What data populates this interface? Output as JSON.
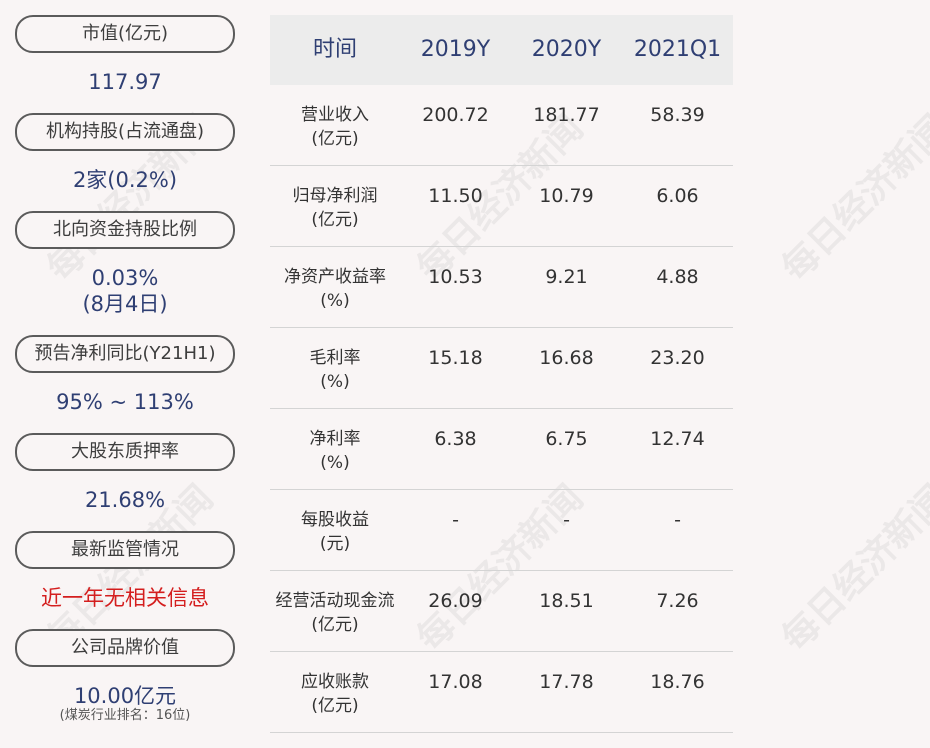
{
  "left": {
    "items": [
      {
        "label": "市值(亿元)",
        "value": "117.97"
      },
      {
        "label": "机构持股(占流通盘)",
        "value": "2家(0.2%)"
      },
      {
        "label": "北向资金持股比例",
        "value": "0.03%",
        "value2": "(8月4日)"
      },
      {
        "label": "预告净利同比(Y21H1)",
        "value": "95% ~ 113%"
      },
      {
        "label": "大股东质押率",
        "value": "21.68%"
      },
      {
        "label": "最新监管情况",
        "value": "近一年无相关信息"
      },
      {
        "label": "公司品牌价值",
        "value": "10.00亿元",
        "sub": "(煤炭行业排名：16位)"
      }
    ]
  },
  "table": {
    "headers": [
      "时间",
      "2019Y",
      "2020Y",
      "2021Q1"
    ],
    "rows": [
      {
        "label": "营业收入",
        "unit": "(亿元)",
        "values": [
          "200.72",
          "181.77",
          "58.39"
        ]
      },
      {
        "label": "归母净利润",
        "unit": "(亿元)",
        "values": [
          "11.50",
          "10.79",
          "6.06"
        ]
      },
      {
        "label": "净资产收益率",
        "unit": "(%)",
        "values": [
          "10.53",
          "9.21",
          "4.88"
        ]
      },
      {
        "label": "毛利率",
        "unit": "(%)",
        "values": [
          "15.18",
          "16.68",
          "23.20"
        ]
      },
      {
        "label": "净利率",
        "unit": "(%)",
        "values": [
          "6.38",
          "6.75",
          "12.74"
        ]
      },
      {
        "label": "每股收益",
        "unit": "(元)",
        "values": [
          "-",
          "-",
          "-"
        ]
      },
      {
        "label": "经营活动现金流",
        "unit": "(亿元)",
        "values": [
          "26.09",
          "18.51",
          "7.26"
        ]
      },
      {
        "label": "应收账款",
        "unit": "(亿元)",
        "values": [
          "17.08",
          "17.78",
          "18.76"
        ]
      }
    ]
  },
  "watermark": "每日经济新闻",
  "colors": {
    "background": "#f9f5f5",
    "value_blue": "#2f3f73",
    "alert_red": "#d41e1e",
    "header_bg": "#ececec"
  }
}
